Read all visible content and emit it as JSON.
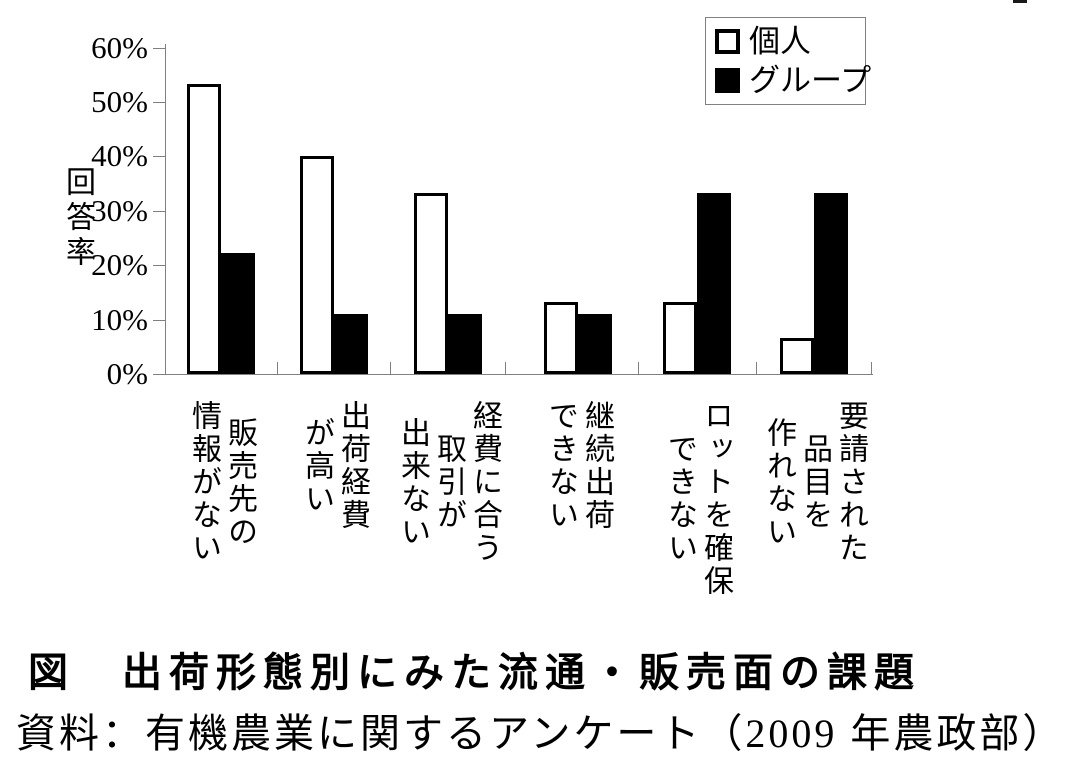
{
  "chart_data": {
    "type": "bar",
    "title": "図　出荷形態別にみた流通・販売面の課題",
    "source": "資料：有機農業に関するアンケート（2009 年農政部）",
    "ylabel": "回答率",
    "ylim": [
      0,
      60
    ],
    "yticks": [
      "0%",
      "10%",
      "20%",
      "30%",
      "40%",
      "50%",
      "60%"
    ],
    "grid": false,
    "legend_position": "top-right",
    "categories": [
      "販売先の情報がない",
      "出荷経費が高い",
      "経費に合う取引が出来ない",
      "継続出荷できない",
      "ロットを確保できない",
      "要請された品目を作れない"
    ],
    "category_lines": [
      [
        "販売先の",
        "情報がない"
      ],
      [
        "出荷経費",
        "が高い"
      ],
      [
        "経費に合う",
        "取引が",
        "出来ない"
      ],
      [
        "継続出荷",
        "できない"
      ],
      [
        "ロットを確保",
        "できない"
      ],
      [
        "要請された",
        "品目を",
        "作れない"
      ]
    ],
    "series": [
      {
        "name": "個人",
        "fill": "#ffffff",
        "values": [
          53.3,
          40.0,
          33.3,
          13.3,
          13.3,
          6.7
        ]
      },
      {
        "name": "グループ",
        "fill": "#000000",
        "values": [
          22.2,
          11.1,
          11.1,
          11.1,
          33.3,
          33.3
        ]
      }
    ]
  },
  "colors": {
    "background": "#ffffff",
    "bar_outline": "#000000",
    "axis": "#808080",
    "text": "#000000",
    "legend_border": "#808080"
  }
}
